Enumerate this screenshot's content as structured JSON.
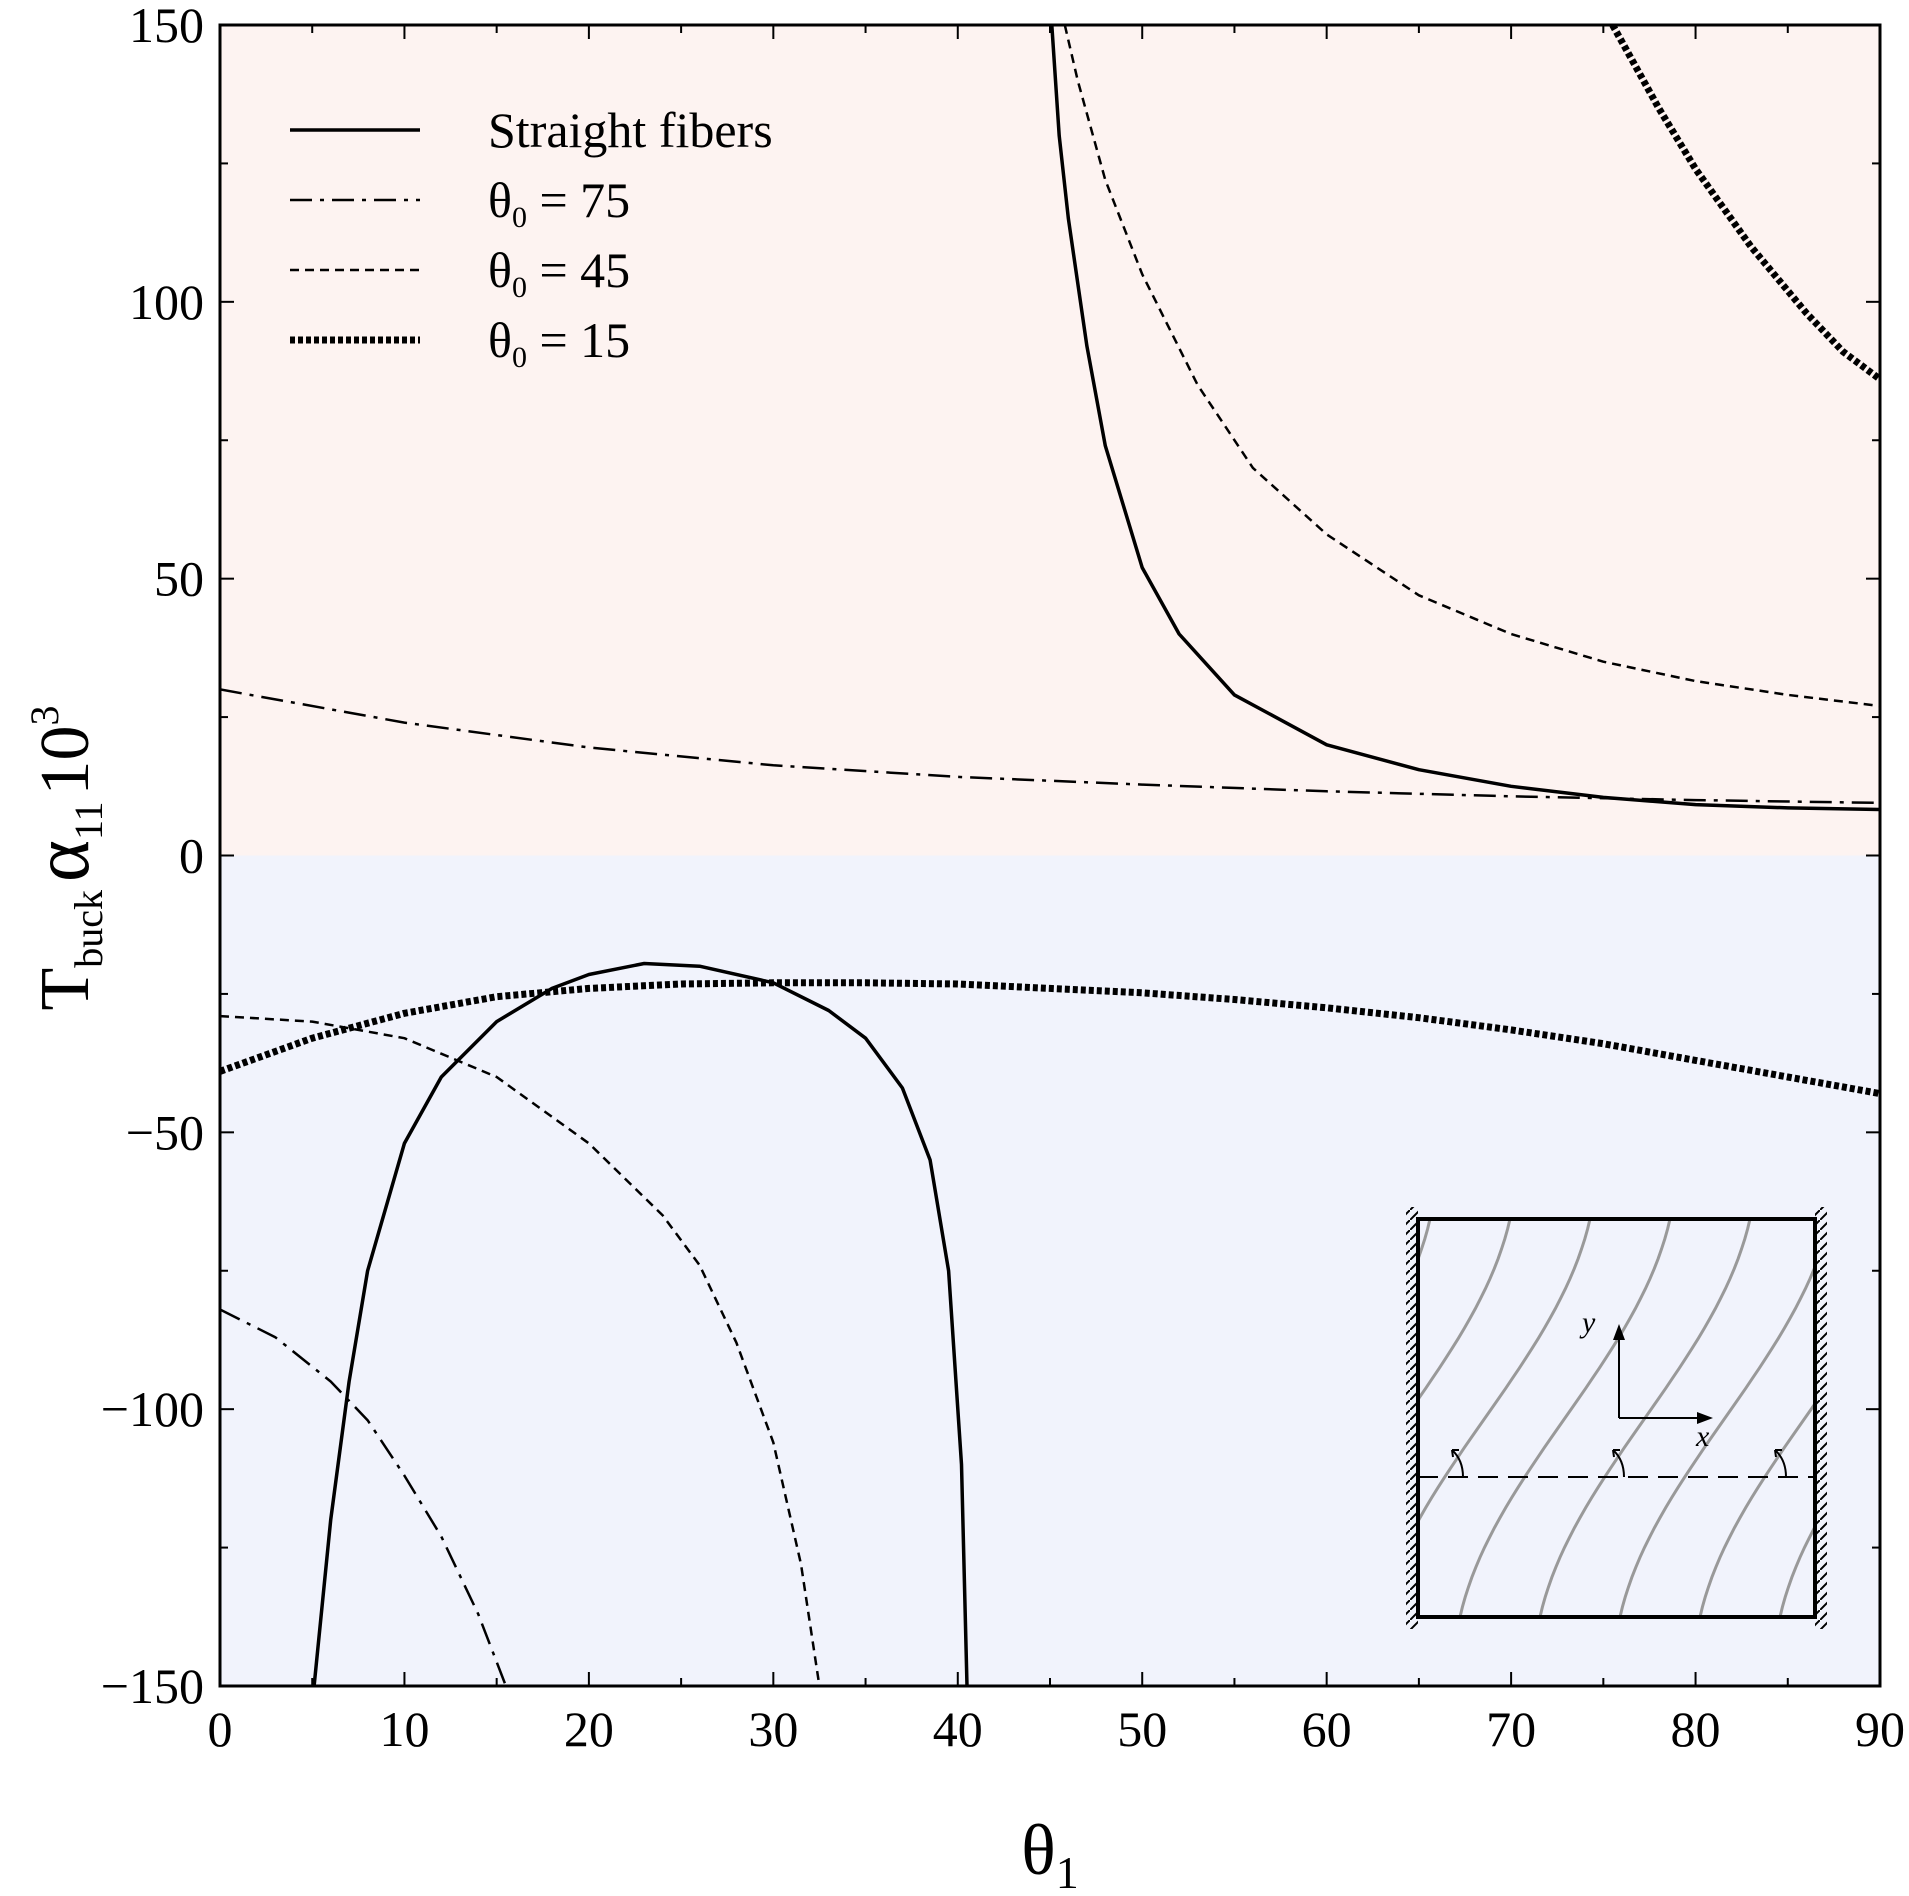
{
  "chart_data": {
    "type": "line",
    "xlabel": {
      "main": "θ",
      "sub": "1"
    },
    "ylabel": {
      "main": "T",
      "sub": "buck",
      "greek": "α",
      "greek_sub": "11",
      "factor": "10",
      "factor_sup": "3"
    },
    "xlim": [
      0,
      90
    ],
    "ylim": [
      -150,
      150
    ],
    "xticks": [
      0,
      10,
      20,
      30,
      40,
      50,
      60,
      70,
      80,
      90
    ],
    "yticks": [
      -150,
      -100,
      -50,
      0,
      50,
      100,
      150
    ],
    "xtick_labels": [
      "0",
      "10",
      "20",
      "30",
      "40",
      "50",
      "60",
      "70",
      "80",
      "90"
    ],
    "ytick_labels": [
      "−150",
      "−100",
      "−50",
      "0",
      "50",
      "100",
      "150"
    ],
    "grid": false,
    "legend_position": "top-left",
    "regions": [
      {
        "y_from": 0,
        "y_to": 150,
        "color": "#fdf3f1"
      },
      {
        "y_from": -150,
        "y_to": 0,
        "color": "#f1f3fc"
      }
    ],
    "series": [
      {
        "name": "Straight fibers",
        "style": "solid",
        "segments": [
          [
            [
              45.1,
              150
            ],
            [
              45.5,
              130
            ],
            [
              46,
              115
            ],
            [
              47,
              92
            ],
            [
              48,
              74
            ],
            [
              50,
              52
            ],
            [
              52,
              40
            ],
            [
              55,
              29
            ],
            [
              60,
              20
            ],
            [
              65,
              15.5
            ],
            [
              70,
              12.5
            ],
            [
              75,
              10.5
            ],
            [
              80,
              9.2
            ],
            [
              85,
              8.6
            ],
            [
              90,
              8.3
            ]
          ],
          [
            [
              5.1,
              -150
            ],
            [
              6,
              -120
            ],
            [
              7,
              -95
            ],
            [
              8,
              -75
            ],
            [
              10,
              -52
            ],
            [
              12,
              -40
            ],
            [
              15,
              -30
            ],
            [
              18,
              -24
            ],
            [
              20,
              -21.5
            ],
            [
              23,
              -19.5
            ],
            [
              26,
              -20
            ],
            [
              30,
              -23
            ],
            [
              33,
              -28
            ],
            [
              35,
              -33
            ],
            [
              37,
              -42
            ],
            [
              38.5,
              -55
            ],
            [
              39.5,
              -75
            ],
            [
              40.2,
              -110
            ],
            [
              40.5,
              -150
            ]
          ]
        ]
      },
      {
        "name": "θ₀ = 75",
        "legend": {
          "main": "θ",
          "sub": "0",
          "rest": " = 75"
        },
        "style": "dashdot",
        "segments": [
          [
            [
              0,
              30
            ],
            [
              10,
              24
            ],
            [
              20,
              19.5
            ],
            [
              30,
              16.3
            ],
            [
              40,
              14.2
            ],
            [
              50,
              12.8
            ],
            [
              60,
              11.6
            ],
            [
              70,
              10.7
            ],
            [
              80,
              10
            ],
            [
              90,
              9.5
            ]
          ],
          [
            [
              0,
              -82
            ],
            [
              3,
              -87
            ],
            [
              6,
              -95
            ],
            [
              8,
              -102
            ],
            [
              10,
              -112
            ],
            [
              12,
              -123
            ],
            [
              14,
              -137
            ],
            [
              15.5,
              -150
            ]
          ]
        ]
      },
      {
        "name": "θ₀ = 45",
        "legend": {
          "main": "θ",
          "sub": "0",
          "rest": " = 45"
        },
        "style": "dashed",
        "segments": [
          [
            [
              45.8,
              150
            ],
            [
              46.5,
              140
            ],
            [
              48,
              122
            ],
            [
              50,
              105
            ],
            [
              53,
              85
            ],
            [
              56,
              70
            ],
            [
              60,
              58
            ],
            [
              65,
              47
            ],
            [
              70,
              40
            ],
            [
              75,
              35
            ],
            [
              80,
              31.5
            ],
            [
              85,
              29
            ],
            [
              90,
              27
            ]
          ],
          [
            [
              0,
              -29
            ],
            [
              5,
              -30
            ],
            [
              10,
              -33
            ],
            [
              15,
              -40
            ],
            [
              20,
              -52
            ],
            [
              24,
              -65
            ],
            [
              26,
              -74
            ],
            [
              28,
              -88
            ],
            [
              30,
              -106
            ],
            [
              31.5,
              -128
            ],
            [
              32.5,
              -150
            ]
          ]
        ]
      },
      {
        "name": "θ₀ = 15",
        "legend": {
          "main": "θ",
          "sub": "0",
          "rest": " = 15"
        },
        "style": "thick-dotted",
        "segments": [
          [
            [
              75.5,
              150
            ],
            [
              78,
              135
            ],
            [
              80,
              124
            ],
            [
              83,
              110
            ],
            [
              86,
              98
            ],
            [
              88,
              91
            ],
            [
              90,
              86
            ]
          ],
          [
            [
              0,
              -39
            ],
            [
              5,
              -33
            ],
            [
              10,
              -28.5
            ],
            [
              15,
              -25.5
            ],
            [
              20,
              -24
            ],
            [
              25,
              -23.2
            ],
            [
              30,
              -23
            ],
            [
              35,
              -23
            ],
            [
              40,
              -23.2
            ],
            [
              45,
              -24
            ],
            [
              50,
              -24.8
            ],
            [
              55,
              -26
            ],
            [
              60,
              -27.5
            ],
            [
              65,
              -29.3
            ],
            [
              70,
              -31.5
            ],
            [
              75,
              -34
            ],
            [
              80,
              -37
            ],
            [
              85,
              -40
            ],
            [
              90,
              -43
            ]
          ]
        ]
      }
    ]
  }
}
